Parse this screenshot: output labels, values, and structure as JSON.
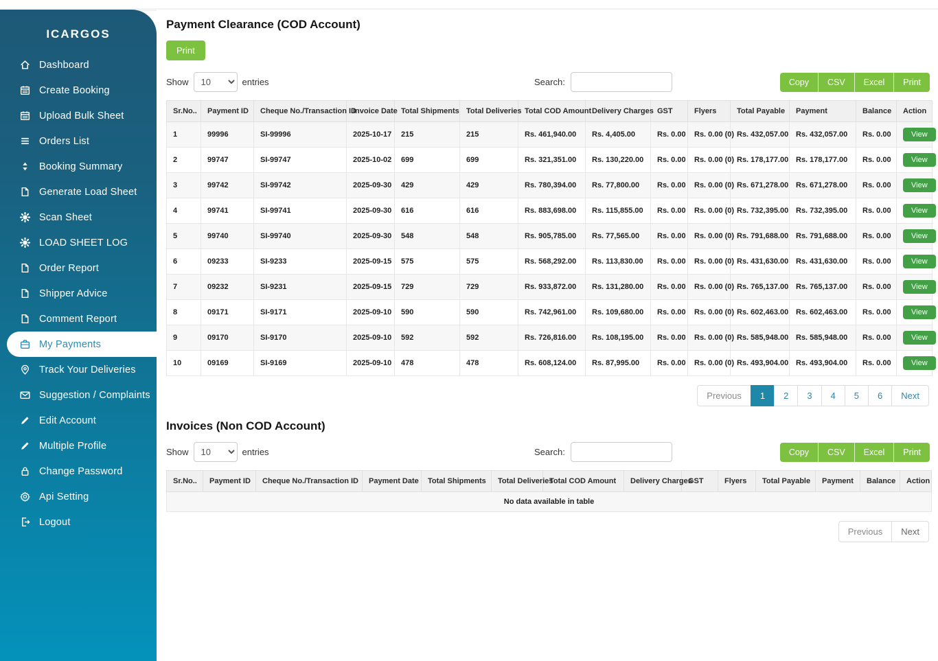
{
  "app": {
    "brand": "ICARGOS"
  },
  "sidebar": {
    "items": [
      {
        "label": "Dashboard",
        "icon": "home-icon",
        "active": false
      },
      {
        "label": "Create Booking",
        "icon": "calendar-icon",
        "active": false
      },
      {
        "label": "Upload Bulk Sheet",
        "icon": "calendar-icon",
        "active": false
      },
      {
        "label": "Orders List",
        "icon": "list-icon",
        "active": false
      },
      {
        "label": "Booking Summary",
        "icon": "sort-icon",
        "active": false
      },
      {
        "label": "Generate Load Sheet",
        "icon": "file-icon",
        "active": false
      },
      {
        "label": "Scan Sheet",
        "icon": "gear-icon",
        "active": false
      },
      {
        "label": "LOAD SHEET LOG",
        "icon": "gear-icon",
        "active": false
      },
      {
        "label": "Order Report",
        "icon": "file-icon",
        "active": false
      },
      {
        "label": "Shipper Advice",
        "icon": "file-icon",
        "active": false
      },
      {
        "label": "Comment Report",
        "icon": "file-icon",
        "active": false
      },
      {
        "label": "My Payments",
        "icon": "briefcase-icon",
        "active": true
      },
      {
        "label": "Track Your Deliveries",
        "icon": "pin-icon",
        "active": false
      },
      {
        "label": "Suggestion / Complaints",
        "icon": "mail-icon",
        "active": false
      },
      {
        "label": "Edit Account",
        "icon": "pencil-icon",
        "active": false
      },
      {
        "label": "Multiple Profile",
        "icon": "pencil-icon",
        "active": false
      },
      {
        "label": "Change Password",
        "icon": "lock-icon",
        "active": false
      },
      {
        "label": "Api Setting",
        "icon": "gear-outline-icon",
        "active": false
      },
      {
        "label": "Logout",
        "icon": "logout-icon",
        "active": false
      }
    ]
  },
  "cod_section": {
    "title": "Payment Clearance (COD Account)",
    "print_button": "Print",
    "show_label": "Show",
    "page_size": "10",
    "entries_label": "entries",
    "search_label": "Search:",
    "search_value": "",
    "export_buttons": [
      "Copy",
      "CSV",
      "Excel",
      "Print"
    ],
    "columns": [
      "Sr.No..",
      "Payment ID",
      "Cheque No./Transaction ID",
      "Invoice Date",
      "Total Shipments",
      "Total Deliveries",
      "Total COD Amount",
      "Delivery Charges",
      "GST",
      "Flyers",
      "Total Payable",
      "Payment",
      "Balance",
      "Action"
    ],
    "action_label": "View",
    "rows": [
      [
        "1",
        "99996",
        "SI-99996",
        "2025-10-17",
        "215",
        "215",
        "Rs. 461,940.00",
        "Rs. 4,405.00",
        "Rs. 0.00",
        "Rs. 0.00 (0)",
        "Rs. 432,057.00",
        "Rs. 432,057.00",
        "Rs. 0.00"
      ],
      [
        "2",
        "99747",
        "SI-99747",
        "2025-10-02",
        "699",
        "699",
        "Rs. 321,351.00",
        "Rs. 130,220.00",
        "Rs. 0.00",
        "Rs. 0.00 (0)",
        "Rs. 178,177.00",
        "Rs. 178,177.00",
        "Rs. 0.00"
      ],
      [
        "3",
        "99742",
        "SI-99742",
        "2025-09-30",
        "429",
        "429",
        "Rs. 780,394.00",
        "Rs. 77,800.00",
        "Rs. 0.00",
        "Rs. 0.00 (0)",
        "Rs. 671,278.00",
        "Rs. 671,278.00",
        "Rs. 0.00"
      ],
      [
        "4",
        "99741",
        "SI-99741",
        "2025-09-30",
        "616",
        "616",
        "Rs. 883,698.00",
        "Rs. 115,855.00",
        "Rs. 0.00",
        "Rs. 0.00 (0)",
        "Rs. 732,395.00",
        "Rs. 732,395.00",
        "Rs. 0.00"
      ],
      [
        "5",
        "99740",
        "SI-99740",
        "2025-09-30",
        "548",
        "548",
        "Rs. 905,785.00",
        "Rs. 77,565.00",
        "Rs. 0.00",
        "Rs. 0.00 (0)",
        "Rs. 791,688.00",
        "Rs. 791,688.00",
        "Rs. 0.00"
      ],
      [
        "6",
        "09233",
        "SI-9233",
        "2025-09-15",
        "575",
        "575",
        "Rs. 568,292.00",
        "Rs. 113,830.00",
        "Rs. 0.00",
        "Rs. 0.00 (0)",
        "Rs. 431,630.00",
        "Rs. 431,630.00",
        "Rs. 0.00"
      ],
      [
        "7",
        "09232",
        "SI-9231",
        "2025-09-15",
        "729",
        "729",
        "Rs. 933,872.00",
        "Rs. 131,280.00",
        "Rs. 0.00",
        "Rs. 0.00 (0)",
        "Rs. 765,137.00",
        "Rs. 765,137.00",
        "Rs. 0.00"
      ],
      [
        "8",
        "09171",
        "SI-9171",
        "2025-09-10",
        "590",
        "590",
        "Rs. 742,961.00",
        "Rs. 109,680.00",
        "Rs. 0.00",
        "Rs. 0.00 (0)",
        "Rs. 602,463.00",
        "Rs. 602,463.00",
        "Rs. 0.00"
      ],
      [
        "9",
        "09170",
        "SI-9170",
        "2025-09-10",
        "592",
        "592",
        "Rs. 726,816.00",
        "Rs. 108,195.00",
        "Rs. 0.00",
        "Rs. 0.00 (0)",
        "Rs. 585,948.00",
        "Rs. 585,948.00",
        "Rs. 0.00"
      ],
      [
        "10",
        "09169",
        "SI-9169",
        "2025-09-10",
        "478",
        "478",
        "Rs. 608,124.00",
        "Rs. 87,995.00",
        "Rs. 0.00",
        "Rs. 0.00 (0)",
        "Rs. 493,904.00",
        "Rs. 493,904.00",
        "Rs. 0.00"
      ]
    ],
    "pagination": {
      "previous": "Previous",
      "pages": [
        "1",
        "2",
        "3",
        "4",
        "5",
        "6"
      ],
      "active_page": "1",
      "next": "Next"
    }
  },
  "invoice_section": {
    "title": "Invoices (Non COD Account)",
    "show_label": "Show",
    "page_size": "10",
    "entries_label": "entries",
    "search_label": "Search:",
    "search_value": "",
    "export_buttons": [
      "Copy",
      "CSV",
      "Excel",
      "Print"
    ],
    "columns": [
      "Sr.No..",
      "Payment ID",
      "Cheque No./Transaction ID",
      "Payment Date",
      "Total Shipments",
      "Total Deliveries",
      "Total COD Amount",
      "Delivery Charges",
      "GST",
      "Flyers",
      "Total Payable",
      "Payment",
      "Balance",
      "Action"
    ],
    "empty_text": "No data available in table",
    "pagination": {
      "previous": "Previous",
      "next": "Next"
    }
  },
  "colors": {
    "sidebar_top": "#1d5977",
    "sidebar_bottom": "#0492bb",
    "active_item_text": "#2e8cb0",
    "export_green": "#7cc13f",
    "view_green": "#43a047",
    "pagination_active": "#1f87a8"
  }
}
